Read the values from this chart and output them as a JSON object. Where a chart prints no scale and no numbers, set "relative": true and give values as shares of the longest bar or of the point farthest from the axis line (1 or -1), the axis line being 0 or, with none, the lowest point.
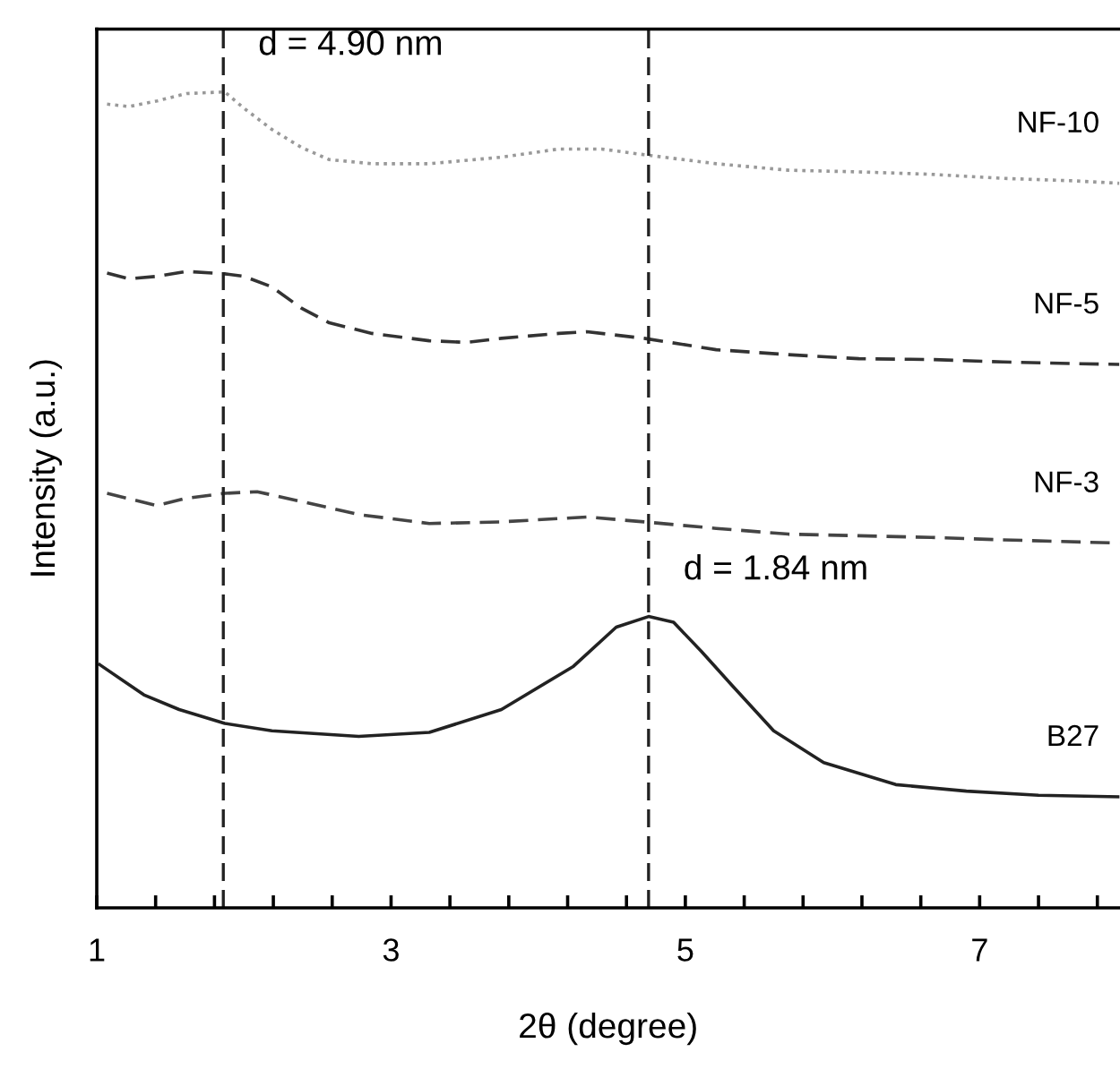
{
  "chart_data": {
    "type": "line",
    "relative": true,
    "xlabel": "2θ (degree)",
    "ylabel": "Intensity (a.u.)",
    "xlim": [
      1,
      7.95
    ],
    "xticks": [
      1,
      {
        "value": 1.4,
        "label": null
      },
      {
        "value": 1.8,
        "label": null
      },
      {
        "value": 2.2,
        "label": null
      },
      {
        "value": 2.6,
        "label": null
      },
      3,
      {
        "value": 3.4,
        "label": null
      },
      {
        "value": 3.8,
        "label": null
      },
      {
        "value": 4.2,
        "label": null
      },
      {
        "value": 4.6,
        "label": null
      },
      5,
      {
        "value": 5.4,
        "label": null
      },
      {
        "value": 5.8,
        "label": null
      },
      {
        "value": 6.2,
        "label": null
      },
      {
        "value": 6.6,
        "label": null
      },
      7,
      {
        "value": 7.4,
        "label": null
      },
      {
        "value": 7.8,
        "label": null
      }
    ],
    "grid": false,
    "legend": false,
    "marker": "none",
    "series": [
      {
        "name": "NF-10",
        "color": "#999999",
        "line_style": "dotted",
        "x": [
          1.07,
          1.22,
          1.41,
          1.61,
          1.87,
          2.0,
          2.19,
          2.39,
          2.58,
          2.87,
          3.26,
          3.75,
          4.14,
          4.43,
          4.72,
          5.21,
          5.7,
          6.18,
          6.67,
          7.16,
          7.64,
          7.95
        ],
        "values": [
          0.985,
          0.982,
          0.989,
          0.998,
          1.0,
          0.98,
          0.954,
          0.932,
          0.917,
          0.912,
          0.912,
          0.92,
          0.93,
          0.93,
          0.923,
          0.912,
          0.904,
          0.902,
          0.899,
          0.894,
          0.891,
          0.888
        ]
      },
      {
        "name": "NF-5",
        "color": "#333333",
        "line_style": "dashed",
        "x": [
          1.07,
          1.22,
          1.41,
          1.61,
          1.87,
          2.0,
          2.19,
          2.39,
          2.58,
          2.87,
          3.26,
          3.51,
          3.75,
          4.14,
          4.33,
          4.72,
          5.21,
          5.7,
          6.18,
          6.67,
          7.16,
          7.64,
          7.95
        ],
        "values": [
          0.778,
          0.771,
          0.774,
          0.78,
          0.777,
          0.774,
          0.761,
          0.735,
          0.717,
          0.704,
          0.695,
          0.693,
          0.698,
          0.704,
          0.706,
          0.698,
          0.684,
          0.678,
          0.673,
          0.672,
          0.669,
          0.667,
          0.666
        ]
      },
      {
        "name": "NF-3",
        "color": "#444444",
        "line_style": "dashed",
        "x": [
          1.07,
          1.41,
          1.61,
          1.87,
          2.09,
          2.39,
          2.78,
          3.26,
          3.75,
          4.33,
          4.72,
          5.21,
          5.7,
          6.18,
          6.67,
          7.16,
          7.95
        ],
        "values": [
          0.508,
          0.493,
          0.502,
          0.508,
          0.51,
          0.498,
          0.482,
          0.471,
          0.473,
          0.479,
          0.473,
          0.465,
          0.458,
          0.456,
          0.454,
          0.451,
          0.447
        ]
      },
      {
        "name": "B27",
        "color": "#222222",
        "line_style": "solid",
        "x": [
          1.02,
          1.32,
          1.56,
          1.87,
          2.19,
          2.78,
          3.26,
          3.75,
          4.24,
          4.53,
          4.75,
          4.92,
          5.11,
          5.31,
          5.6,
          5.94,
          6.43,
          6.91,
          7.4,
          7.95
        ],
        "values": [
          0.298,
          0.261,
          0.243,
          0.226,
          0.217,
          0.21,
          0.215,
          0.243,
          0.296,
          0.344,
          0.357,
          0.35,
          0.314,
          0.274,
          0.217,
          0.178,
          0.151,
          0.143,
          0.138,
          0.136
        ]
      }
    ],
    "ref_lines": [
      {
        "axis": "x",
        "value": 1.86,
        "color": "#222222",
        "line_style": "dashed"
      },
      {
        "axis": "x",
        "value": 4.75,
        "color": "#222222",
        "line_style": "dashed"
      }
    ],
    "annotations": [
      "d = 4.90 nm",
      "d = 1.84 nm"
    ]
  }
}
